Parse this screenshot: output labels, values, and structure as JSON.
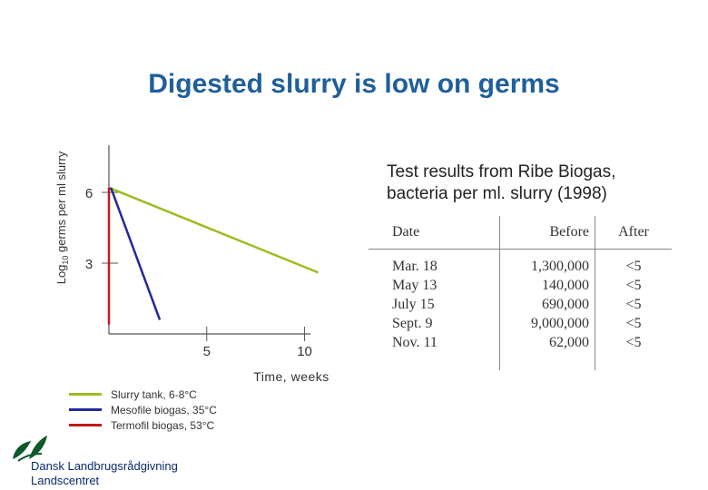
{
  "page": {
    "title": "Digested slurry is low on germs"
  },
  "chart_data": {
    "type": "line",
    "title": "",
    "xlabel": "Time, weeks",
    "ylabel_main": "Log",
    "ylabel_sub": "10",
    "ylabel_rest": " germs per ml slurry",
    "xlim": [
      0,
      10.3
    ],
    "ylim": [
      0,
      8.0
    ],
    "xticks": [
      5,
      10
    ],
    "yticks": [
      3,
      6
    ],
    "grid": false,
    "legend_position": "bottom-left",
    "series": [
      {
        "name": "Slurry tank, 6-8°C",
        "color": "#9cbc1f",
        "points": [
          [
            0,
            6.2
          ],
          [
            10.7,
            2.6
          ]
        ]
      },
      {
        "name": "Mesofile biogas, 35°C",
        "color": "#1f2a9a",
        "points": [
          [
            0.1,
            6.2
          ],
          [
            2.6,
            0.6
          ]
        ]
      },
      {
        "name": "Termofil biogas, 53°C",
        "color": "#c21a1a",
        "points": [
          [
            0,
            6.2
          ],
          [
            0,
            0.4
          ]
        ]
      }
    ]
  },
  "test_results": {
    "heading_line1": "Test results from Ribe Biogas,",
    "heading_line2": "bacteria per ml. slurry (1998)",
    "columns": [
      "Date",
      "Before",
      "After"
    ],
    "rows": [
      {
        "date": "Mar. 18",
        "before": "1,300,000",
        "after": "<5"
      },
      {
        "date": "May 13",
        "before": "140,000",
        "after": "<5"
      },
      {
        "date": "July 15",
        "before": "690,000",
        "after": "<5"
      },
      {
        "date": "Sept. 9",
        "before": "9,000,000",
        "after": "<5"
      },
      {
        "date": "Nov. 11",
        "before": "62,000",
        "after": "<5"
      }
    ]
  },
  "logo": {
    "line1": "Dansk Landbrugsrådgivning",
    "line2": "Landscentret",
    "color": "#0b5a2a"
  }
}
